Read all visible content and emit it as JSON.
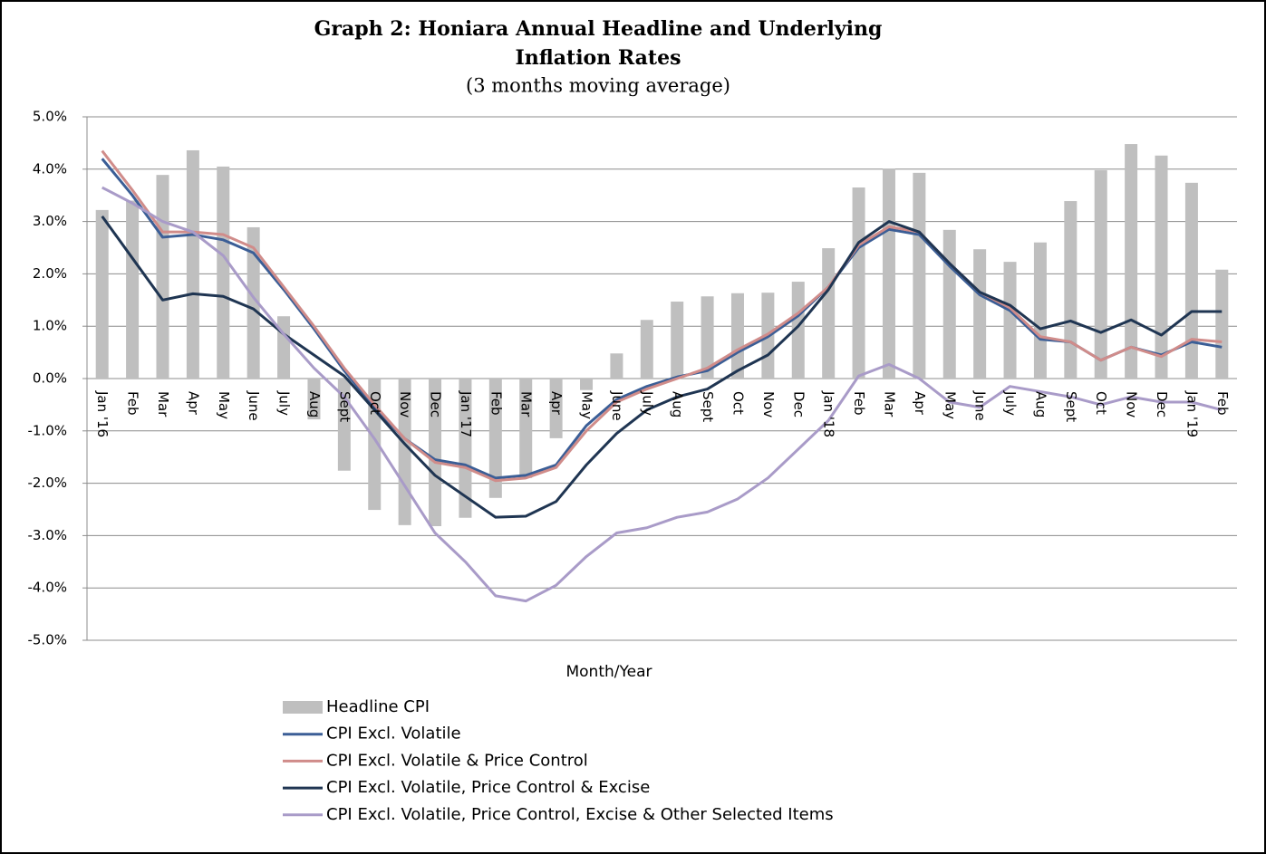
{
  "chart_data": {
    "type": "bar",
    "title": [
      "Graph 2:   Honiara Annual Headline and Underlying",
      "Inflation Rates"
    ],
    "subtitle": "(3 months moving average)",
    "x_label": "Month/Year",
    "categories": [
      "Jan '16",
      "Feb",
      "Mar",
      "Apr",
      "May",
      "June",
      "July",
      "Aug",
      "Sept",
      "Oct",
      "Nov",
      "Dec",
      "Jan '17",
      "Feb",
      "Mar",
      "Apr",
      "May",
      "June",
      "July",
      "Aug",
      "Sept",
      "Oct",
      "Nov",
      "Dec",
      "Jan '18",
      "Feb",
      "Mar",
      "Apr",
      "May",
      "June",
      "July",
      "Aug",
      "Sept",
      "Oct",
      "Nov",
      "Dec",
      "Jan '19",
      "Feb"
    ],
    "ylim": [
      -5,
      5
    ],
    "yticks": [
      {
        "value": -5,
        "label": "-5.0%"
      },
      {
        "value": -4,
        "label": "-4.0%"
      },
      {
        "value": -3,
        "label": "-3.0%"
      },
      {
        "value": -2,
        "label": "-2.0%"
      },
      {
        "value": -1,
        "label": "-1.0%"
      },
      {
        "value": 0,
        "label": "0.0%"
      },
      {
        "value": 1,
        "label": "1.0%"
      },
      {
        "value": 2,
        "label": "2.0%"
      },
      {
        "value": 3,
        "label": "3.0%"
      },
      {
        "value": 4,
        "label": "4.0%"
      },
      {
        "value": 5,
        "label": "5.0%"
      }
    ],
    "grid": true,
    "legend": "bottom",
    "series": [
      {
        "name": "Headline CPI",
        "type": "bar",
        "color": "#bfbfbf",
        "values": [
          3.22,
          3.4,
          3.89,
          4.36,
          4.05,
          2.89,
          1.19,
          -0.78,
          -1.76,
          -2.51,
          -2.8,
          -2.82,
          -2.66,
          -2.28,
          -1.9,
          -1.14,
          -0.22,
          0.48,
          1.12,
          1.47,
          1.57,
          1.63,
          1.64,
          1.85,
          2.49,
          3.65,
          4.01,
          3.93,
          2.84,
          2.47,
          2.23,
          2.6,
          3.39,
          3.98,
          4.48,
          4.26,
          3.74,
          2.08
        ]
      },
      {
        "name": "CPI Excl. Volatile",
        "type": "line",
        "color": "#3b5e96",
        "values": [
          4.2,
          3.5,
          2.7,
          2.75,
          2.65,
          2.4,
          1.7,
          0.95,
          0.15,
          -0.55,
          -1.15,
          -1.55,
          -1.65,
          -1.9,
          -1.85,
          -1.65,
          -0.9,
          -0.4,
          -0.15,
          0.03,
          0.15,
          0.5,
          0.8,
          1.2,
          1.75,
          2.5,
          2.85,
          2.75,
          2.15,
          1.6,
          1.3,
          0.75,
          0.7,
          0.35,
          0.6,
          0.45,
          0.7,
          0.6
        ]
      },
      {
        "name": "CPI Excl. Volatile & Price Control",
        "type": "line",
        "color": "#d08c8a",
        "values": [
          4.35,
          3.6,
          2.8,
          2.8,
          2.75,
          2.5,
          1.75,
          1.0,
          0.2,
          -0.5,
          -1.15,
          -1.6,
          -1.7,
          -1.95,
          -1.9,
          -1.7,
          -1.0,
          -0.45,
          -0.2,
          0.0,
          0.2,
          0.55,
          0.85,
          1.25,
          1.75,
          2.55,
          2.9,
          2.8,
          2.2,
          1.65,
          1.35,
          0.8,
          0.7,
          0.35,
          0.6,
          0.42,
          0.75,
          0.7
        ]
      },
      {
        "name": "CPI Excl. Volatile, Price Control & Excise",
        "type": "line",
        "color": "#1f3552",
        "values": [
          3.1,
          2.3,
          1.5,
          1.62,
          1.57,
          1.33,
          0.85,
          0.45,
          0.05,
          -0.6,
          -1.25,
          -1.85,
          -2.25,
          -2.65,
          -2.63,
          -2.35,
          -1.65,
          -1.05,
          -0.6,
          -0.35,
          -0.2,
          0.15,
          0.45,
          1.0,
          1.7,
          2.6,
          3.0,
          2.8,
          2.2,
          1.65,
          1.4,
          0.95,
          1.1,
          0.88,
          1.12,
          0.83,
          1.28,
          1.28
        ]
      },
      {
        "name": "CPI Excl. Volatile, Price Control, Excise & Other Selected Items",
        "type": "line",
        "color": "#a99bc8",
        "values": [
          3.65,
          3.35,
          3.0,
          2.8,
          2.35,
          1.55,
          0.85,
          0.2,
          -0.35,
          -1.15,
          -2.05,
          -2.95,
          -3.5,
          -4.15,
          -4.25,
          -3.95,
          -3.4,
          -2.95,
          -2.85,
          -2.65,
          -2.55,
          -2.3,
          -1.9,
          -1.35,
          -0.8,
          0.05,
          0.27,
          0.0,
          -0.45,
          -0.55,
          -0.15,
          -0.25,
          -0.35,
          -0.5,
          -0.35,
          -0.45,
          -0.45,
          -0.6
        ]
      }
    ]
  }
}
